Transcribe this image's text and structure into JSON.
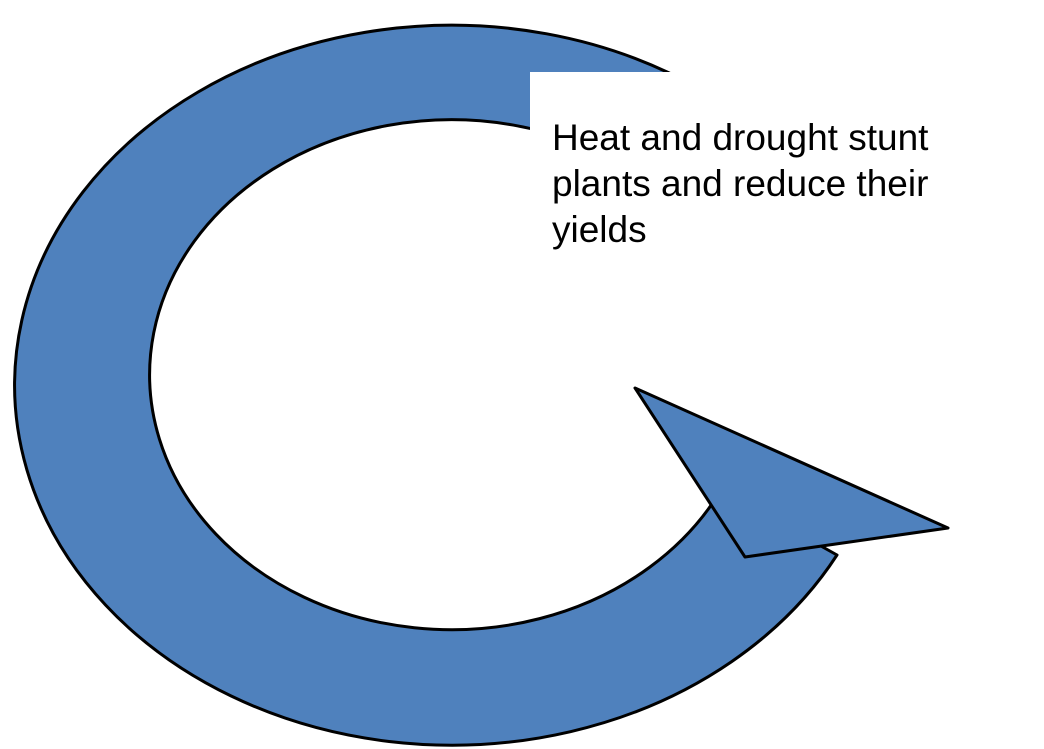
{
  "text_box": {
    "lines": [
      "Heat and drought stunt",
      "plants and reduce their",
      "yields"
    ]
  }
}
